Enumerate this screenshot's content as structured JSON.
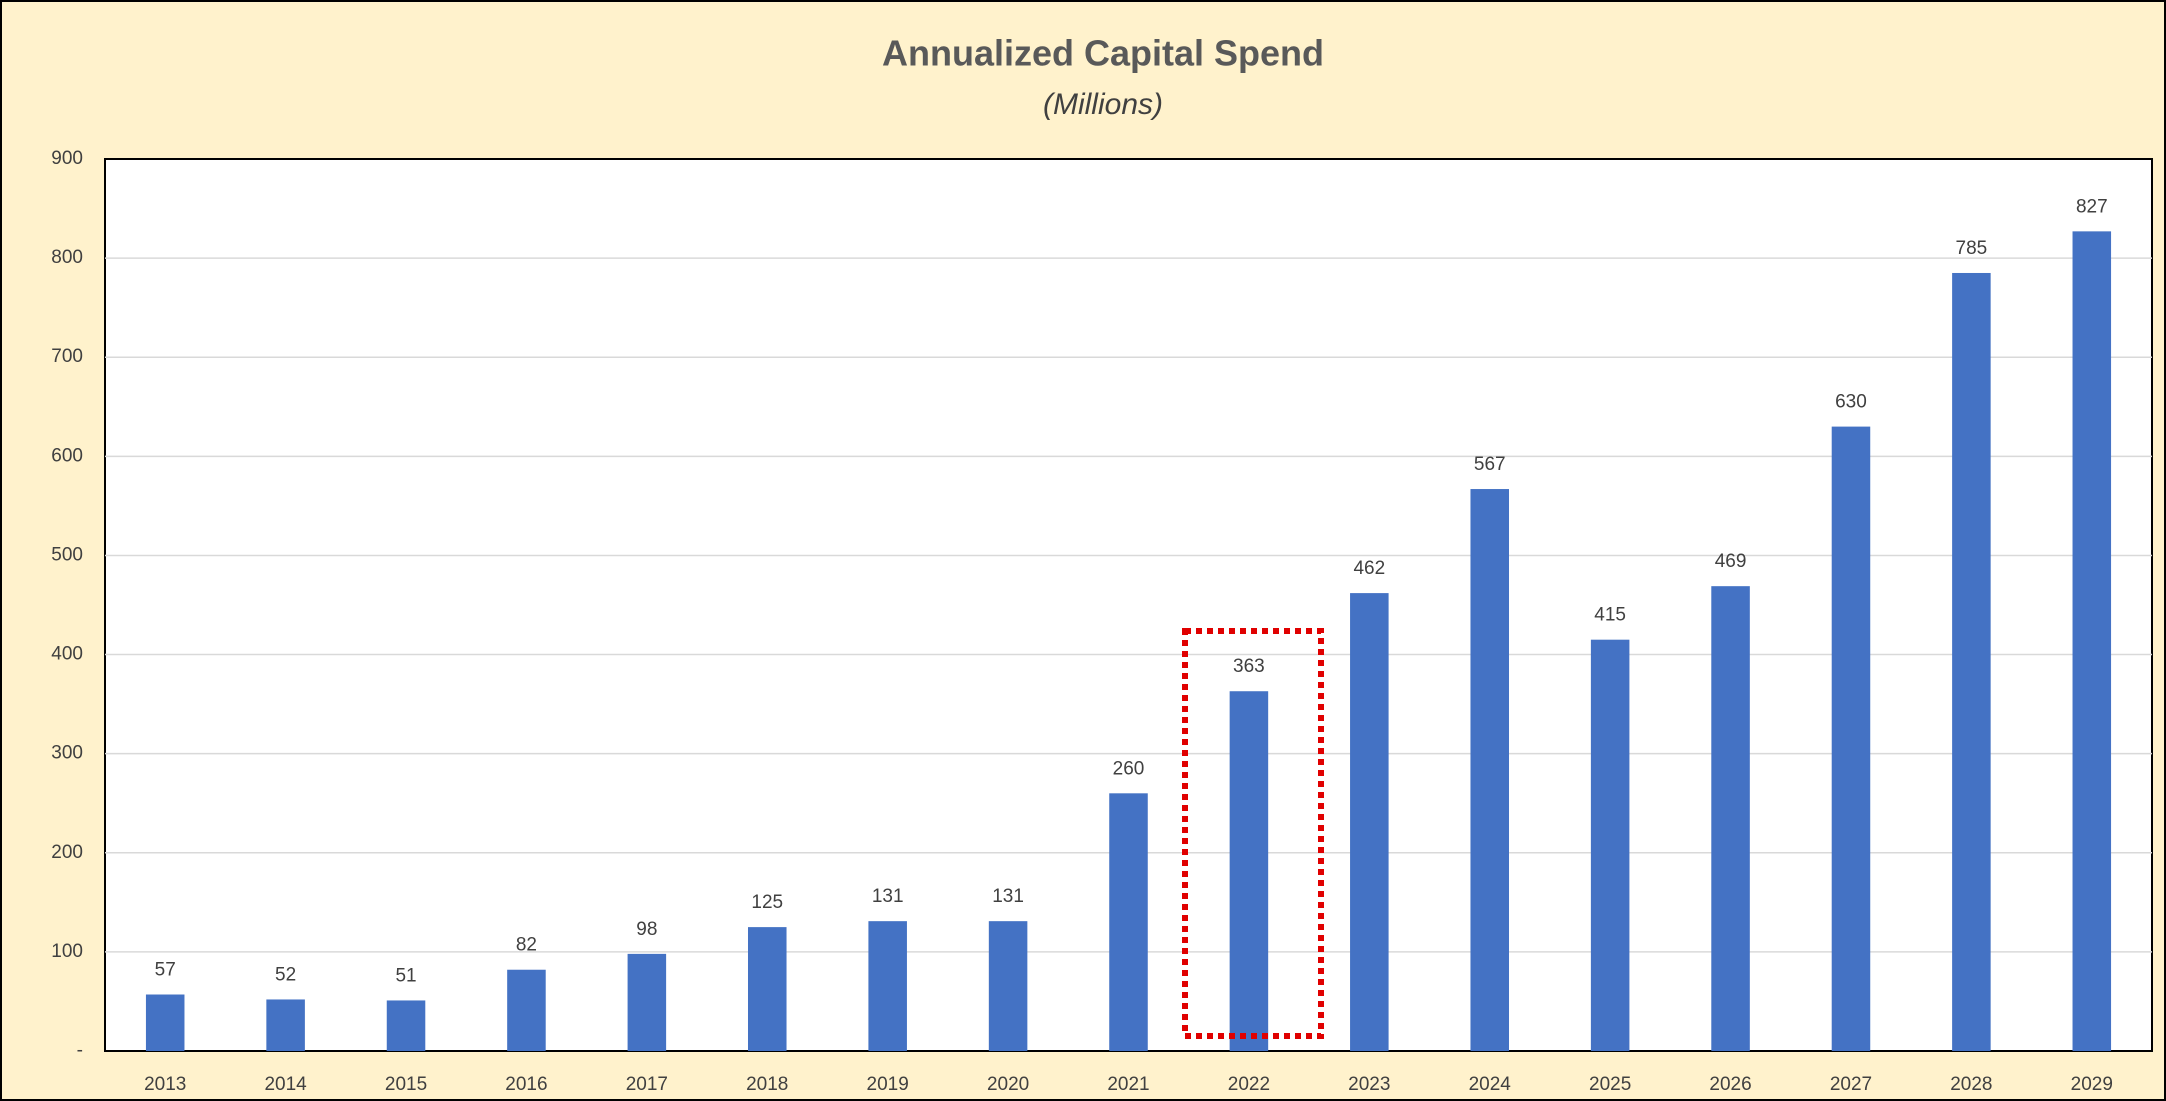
{
  "chart_data": {
    "type": "bar",
    "title": "Annualized Capital Spend",
    "subtitle": "(Millions)",
    "categories": [
      "2013",
      "2014",
      "2015",
      "2016",
      "2017",
      "2018",
      "2019",
      "2020",
      "2021",
      "2022",
      "2023",
      "2024",
      "2025",
      "2026",
      "2027",
      "2028",
      "2029"
    ],
    "values": [
      57,
      52,
      51,
      82,
      98,
      125,
      131,
      131,
      260,
      363,
      462,
      567,
      415,
      469,
      630,
      785,
      827
    ],
    "color": "#4472c4",
    "ylim": [
      0,
      900
    ],
    "yticks": [
      {
        "value": 0,
        "label": "-"
      },
      100,
      200,
      300,
      400,
      500,
      600,
      700,
      800,
      900
    ],
    "grid": true
  }
}
